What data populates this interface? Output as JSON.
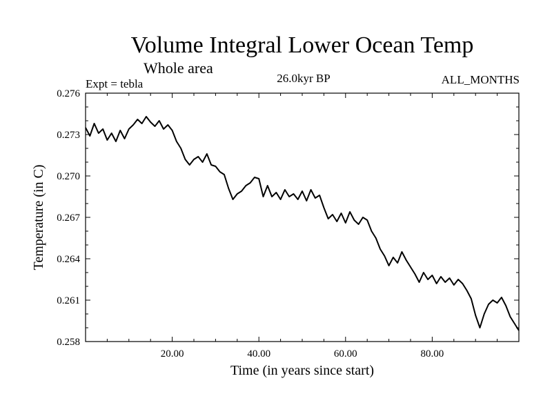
{
  "chart_data": {
    "type": "line",
    "title": "Volume Integral Lower Ocean Temp",
    "subtitle": "Whole area",
    "experiment": "Expt = tebla",
    "period": "26.0kyr BP",
    "months": "ALL_MONTHS",
    "xlabel": "Time (in years since start)",
    "ylabel": "Temperature (in C)",
    "xlim": [
      0,
      100
    ],
    "ylim": [
      0.258,
      0.276
    ],
    "x_ticks": [
      20,
      40,
      60,
      80
    ],
    "x_tick_labels": [
      "20.00",
      "40.00",
      "60.00",
      "80.00"
    ],
    "y_ticks": [
      0.258,
      0.261,
      0.264,
      0.267,
      0.27,
      0.273,
      0.276
    ],
    "y_tick_labels": [
      "0.258",
      "0.261",
      "0.264",
      "0.267",
      "0.270",
      "0.273",
      "0.276"
    ],
    "grid": false,
    "series": [
      {
        "name": "Temperature",
        "x": [
          0,
          1,
          2,
          3,
          4,
          5,
          6,
          7,
          8,
          9,
          10,
          11,
          12,
          13,
          14,
          15,
          16,
          17,
          18,
          19,
          20,
          21,
          22,
          23,
          24,
          25,
          26,
          27,
          28,
          29,
          30,
          31,
          32,
          33,
          34,
          35,
          36,
          37,
          38,
          39,
          40,
          41,
          42,
          43,
          44,
          45,
          46,
          47,
          48,
          49,
          50,
          51,
          52,
          53,
          54,
          55,
          56,
          57,
          58,
          59,
          60,
          61,
          62,
          63,
          64,
          65,
          66,
          67,
          68,
          69,
          70,
          71,
          72,
          73,
          74,
          75,
          76,
          77,
          78,
          79,
          80,
          81,
          82,
          83,
          84,
          85,
          86,
          87,
          88,
          89,
          90,
          91,
          92,
          93,
          94,
          95,
          96,
          97,
          98,
          99,
          100
        ],
        "values": [
          0.2735,
          0.2729,
          0.2738,
          0.2731,
          0.2734,
          0.2726,
          0.2731,
          0.2725,
          0.2733,
          0.2727,
          0.2734,
          0.2737,
          0.2741,
          0.2738,
          0.2743,
          0.2739,
          0.2736,
          0.274,
          0.2734,
          0.2737,
          0.2733,
          0.2725,
          0.272,
          0.2712,
          0.2708,
          0.2712,
          0.2714,
          0.271,
          0.2716,
          0.2708,
          0.2707,
          0.2703,
          0.2701,
          0.2691,
          0.2683,
          0.2687,
          0.2689,
          0.2693,
          0.2695,
          0.2699,
          0.2698,
          0.2685,
          0.2693,
          0.2685,
          0.2688,
          0.2683,
          0.269,
          0.2685,
          0.2687,
          0.2683,
          0.2689,
          0.2682,
          0.269,
          0.2684,
          0.2686,
          0.2677,
          0.2669,
          0.2672,
          0.2667,
          0.2673,
          0.2666,
          0.2674,
          0.2668,
          0.2665,
          0.267,
          0.2668,
          0.266,
          0.2655,
          0.2647,
          0.2642,
          0.2635,
          0.2641,
          0.2637,
          0.2645,
          0.2639,
          0.2634,
          0.2629,
          0.2623,
          0.263,
          0.2625,
          0.2628,
          0.2622,
          0.2627,
          0.2623,
          0.2626,
          0.2621,
          0.2625,
          0.2622,
          0.2617,
          0.2611,
          0.2599,
          0.259,
          0.26,
          0.2607,
          0.261,
          0.2608,
          0.2612,
          0.2606,
          0.2598,
          0.2593,
          0.2588
        ]
      }
    ]
  }
}
